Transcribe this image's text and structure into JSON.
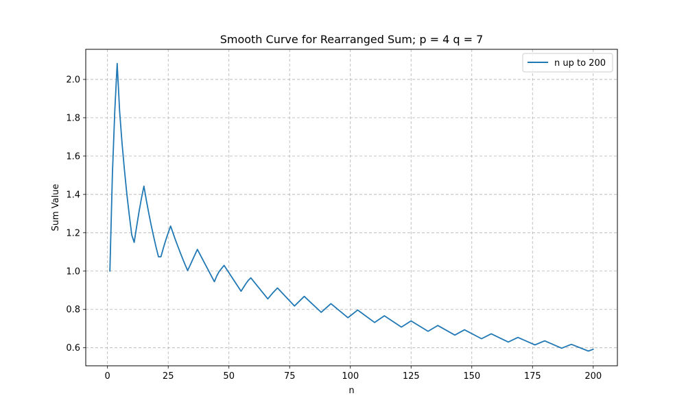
{
  "chart_data": {
    "type": "line",
    "title": "Smooth Curve for Rearranged Sum; p = 4 q = 7",
    "xlabel": "n",
    "ylabel": "Sum Value",
    "xlim": [
      -8.95,
      209.95
    ],
    "ylim": [
      0.506,
      2.157
    ],
    "xticks": [
      0,
      25,
      50,
      75,
      100,
      125,
      150,
      175,
      200
    ],
    "yticks": [
      0.6,
      0.8,
      1.0,
      1.2,
      1.4,
      1.6,
      1.8,
      2.0
    ],
    "xtick_labels": [
      "0",
      "25",
      "50",
      "75",
      "100",
      "125",
      "150",
      "175",
      "200"
    ],
    "ytick_labels": [
      "0.6",
      "0.8",
      "1.0",
      "1.2",
      "1.4",
      "1.6",
      "1.8",
      "2.0"
    ],
    "grid": true,
    "grid_style": "dashed",
    "legend_position": "top-right",
    "series": [
      {
        "name": "n up to 200",
        "color": "#1f77b4",
        "points": [
          [
            1,
            1.0
          ],
          [
            2,
            1.5
          ],
          [
            3,
            1.833
          ],
          [
            4,
            2.083
          ],
          [
            5,
            1.833
          ],
          [
            6,
            1.667
          ],
          [
            7,
            1.524
          ],
          [
            8,
            1.399
          ],
          [
            9,
            1.288
          ],
          [
            10,
            1.188
          ],
          [
            11,
            1.15
          ],
          [
            12,
            1.233
          ],
          [
            13,
            1.31
          ],
          [
            14,
            1.382
          ],
          [
            15,
            1.443
          ],
          [
            16,
            1.37
          ],
          [
            17,
            1.302
          ],
          [
            18,
            1.239
          ],
          [
            19,
            1.18
          ],
          [
            20,
            1.125
          ],
          [
            21,
            1.075
          ],
          [
            22,
            1.075
          ],
          [
            23,
            1.12
          ],
          [
            24,
            1.162
          ],
          [
            25,
            1.2
          ],
          [
            26,
            1.235
          ],
          [
            27,
            1.198
          ],
          [
            28,
            1.162
          ],
          [
            29,
            1.128
          ],
          [
            30,
            1.095
          ],
          [
            31,
            1.063
          ],
          [
            32,
            1.032
          ],
          [
            33,
            1.003
          ],
          [
            34,
            1.03
          ],
          [
            35,
            1.058
          ],
          [
            36,
            1.085
          ],
          [
            37,
            1.113
          ],
          [
            44,
            0.945
          ],
          [
            45,
            0.975
          ],
          [
            46,
            0.998
          ],
          [
            47,
            1.014
          ],
          [
            48,
            1.03
          ],
          [
            55,
            0.895
          ],
          [
            56,
            0.915
          ],
          [
            57,
            0.935
          ],
          [
            58,
            0.952
          ],
          [
            59,
            0.965
          ],
          [
            66,
            0.855
          ],
          [
            67,
            0.87
          ],
          [
            68,
            0.885
          ],
          [
            69,
            0.899
          ],
          [
            70,
            0.912
          ],
          [
            77,
            0.818
          ],
          [
            81,
            0.868
          ],
          [
            88,
            0.785
          ],
          [
            92,
            0.83
          ],
          [
            99,
            0.757
          ],
          [
            103,
            0.797
          ],
          [
            110,
            0.732
          ],
          [
            114,
            0.767
          ],
          [
            121,
            0.708
          ],
          [
            125,
            0.74
          ],
          [
            132,
            0.686
          ],
          [
            136,
            0.716
          ],
          [
            143,
            0.666
          ],
          [
            147,
            0.694
          ],
          [
            154,
            0.647
          ],
          [
            158,
            0.673
          ],
          [
            165,
            0.63
          ],
          [
            169,
            0.654
          ],
          [
            176,
            0.615
          ],
          [
            180,
            0.636
          ],
          [
            187,
            0.598
          ],
          [
            191,
            0.618
          ],
          [
            198,
            0.583
          ],
          [
            200,
            0.592
          ]
        ]
      }
    ]
  }
}
